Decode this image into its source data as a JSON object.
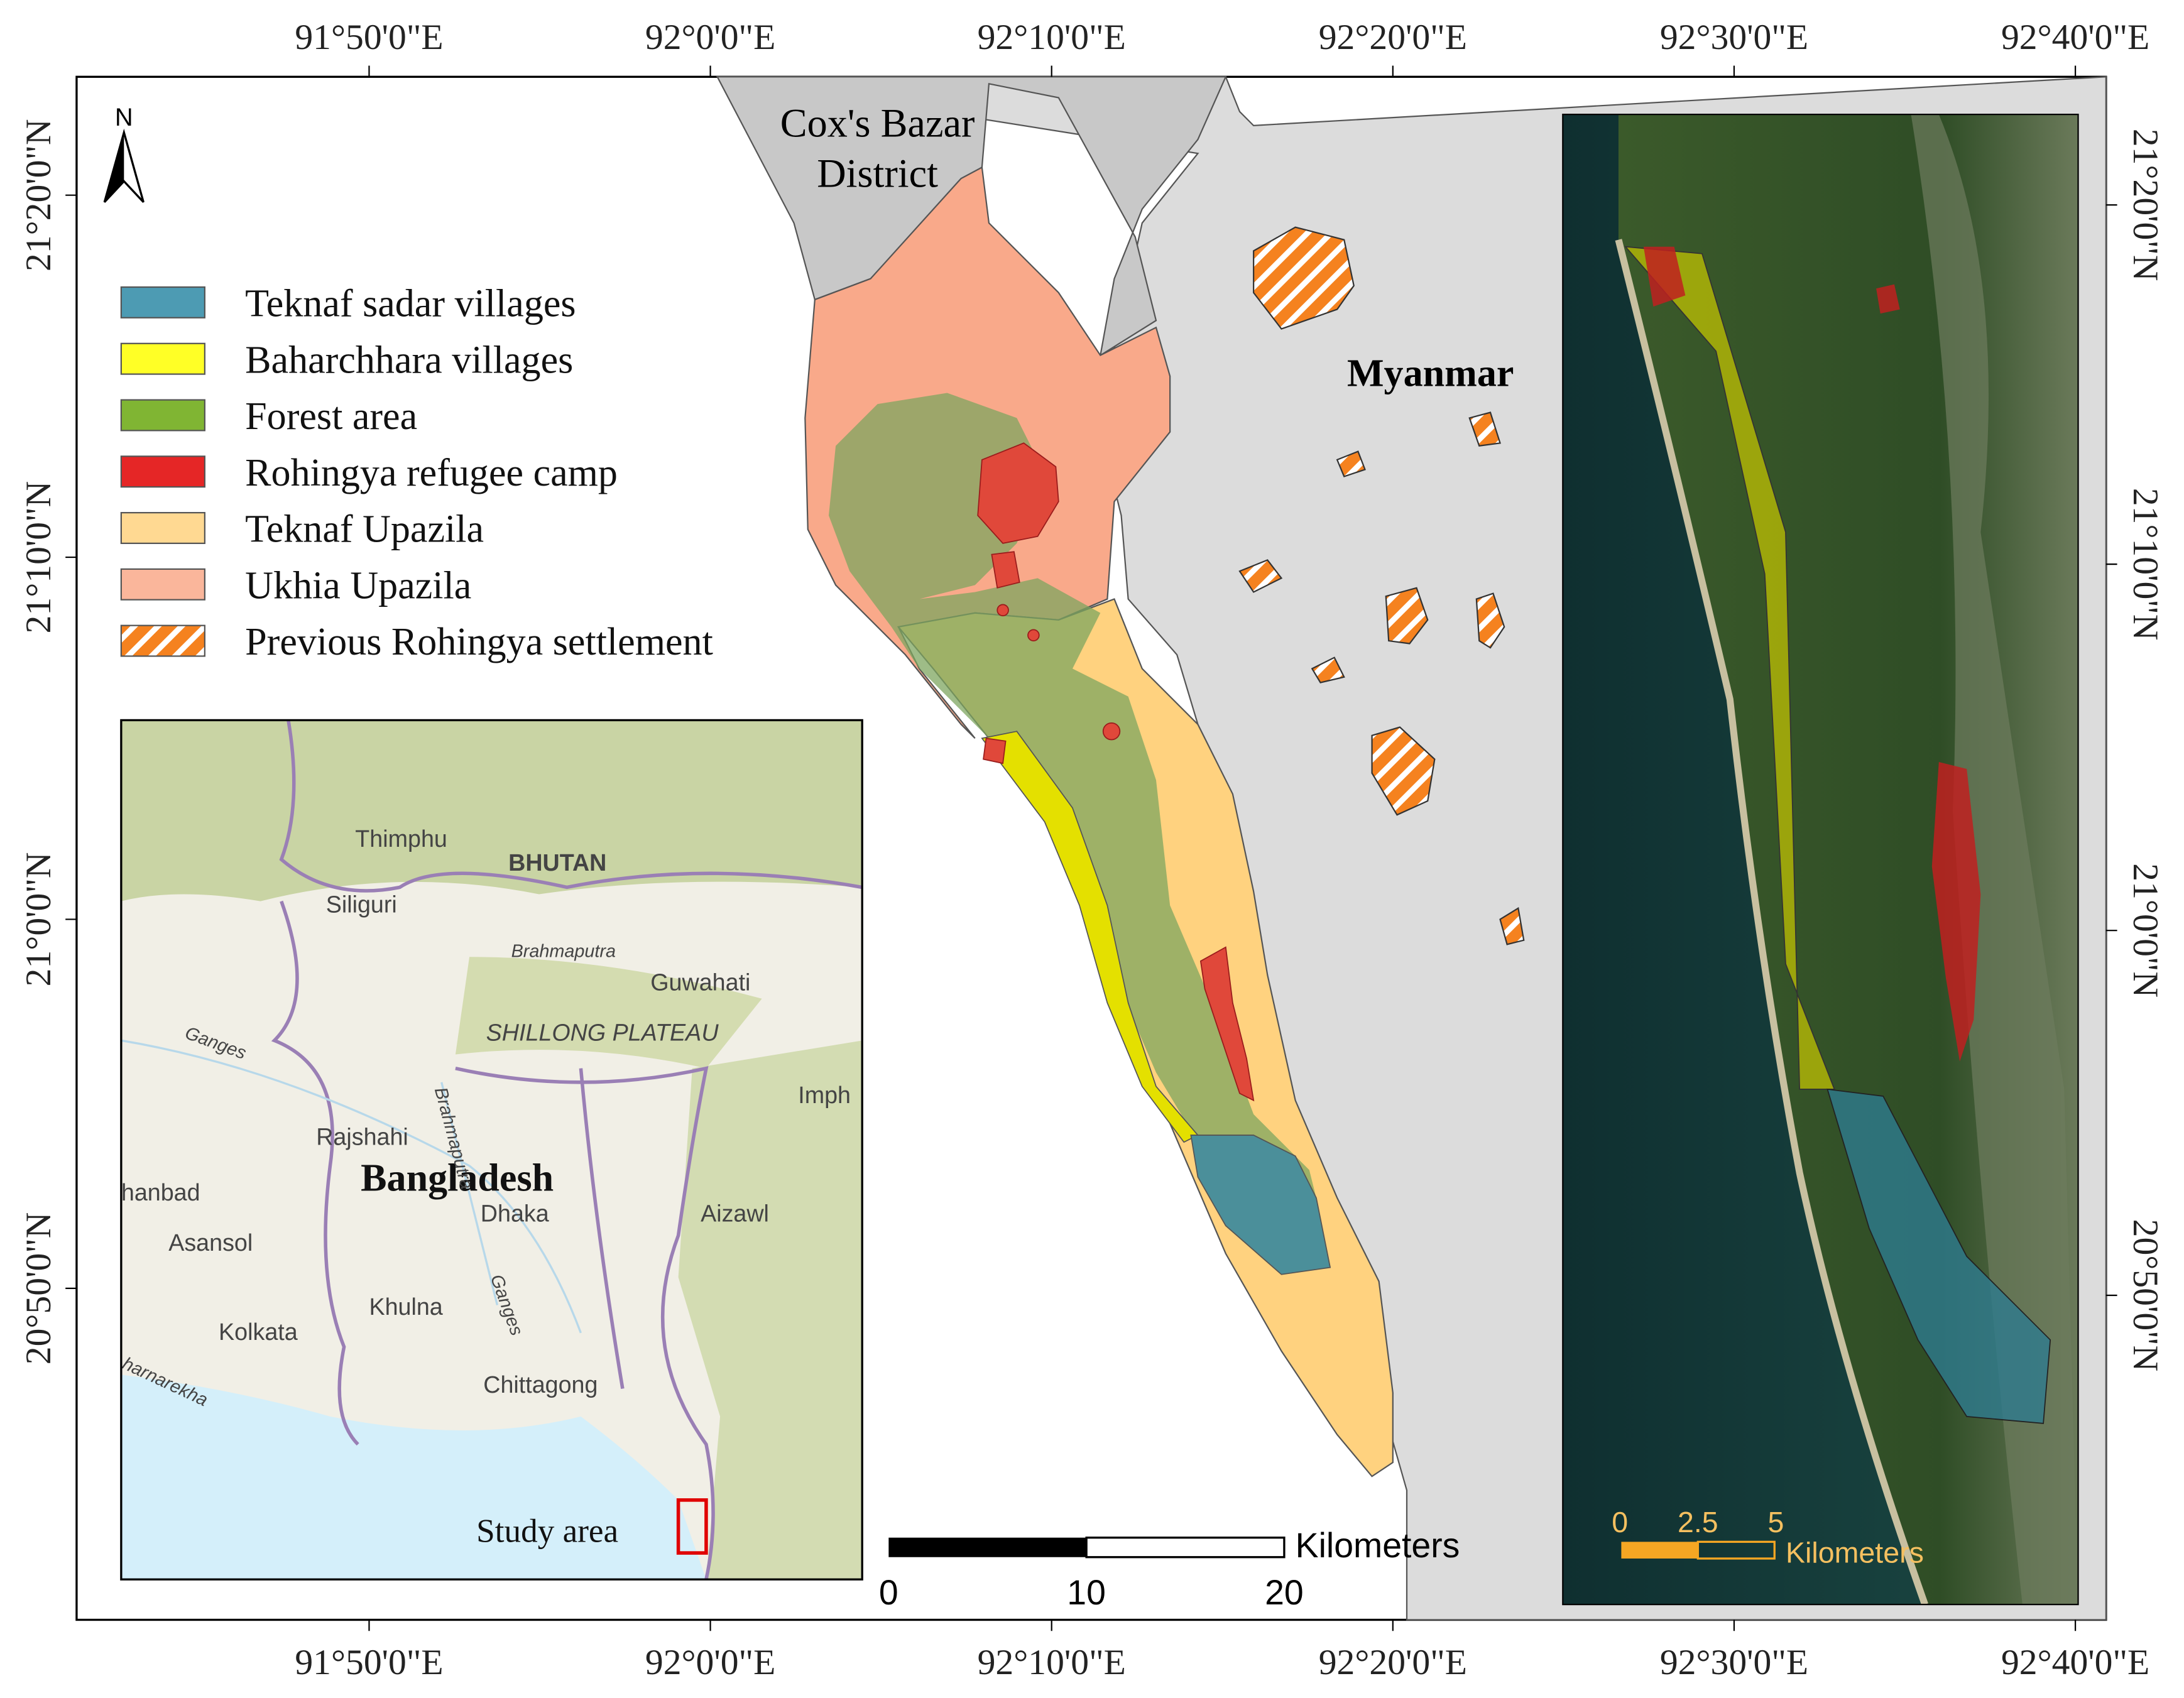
{
  "grid": {
    "lon_top": [
      "91°50'0\"E",
      "92°0'0\"E",
      "92°10'0\"E",
      "92°20'0\"E",
      "92°30'0\"E",
      "92°40'0\"E"
    ],
    "lon_bottom": [
      "91°50'0\"E",
      "92°0'0\"E",
      "92°10'0\"E",
      "92°20'0\"E",
      "92°30'0\"E",
      "92°40'0\"E"
    ],
    "lat_left": [
      "21°20'0\"N",
      "21°10'0\"N",
      "21°0'0\"N",
      "20°50'0\"N"
    ],
    "lat_right": [
      "21°20'0\"N",
      "21°10'0\"N",
      "21°0'0\"N",
      "20°50'0\"N"
    ]
  },
  "north": "N",
  "legend": [
    {
      "label": "Teknaf  sadar villages",
      "color": "#2e8aa6"
    },
    {
      "label": "Baharchhara villages",
      "color": "#ffff00"
    },
    {
      "label": "Forest area",
      "color": "#6aa80f"
    },
    {
      "label": "Rohingya refugee camp",
      "color": "#e00000"
    },
    {
      "label": "Teknaf Upazila",
      "color": "#ffd27f"
    },
    {
      "label": "Ukhia Upazila",
      "color": "#f9a98a"
    },
    {
      "label": "Previous Rohingya settlement",
      "color": "#f5821f"
    }
  ],
  "places": {
    "district": [
      "Cox's Bazar",
      "District"
    ],
    "country": "Myanmar"
  },
  "inset": {
    "labels": [
      "Thimphu",
      "BHUTAN",
      "Siliguri",
      "Brahmaputra",
      "Guwahati",
      "SHILLONG PLATEAU",
      "Ganges",
      "Imph",
      "Rajshahi",
      "Bangladesh",
      "hanbad",
      "Asansol",
      "Dhaka",
      "Aizawl",
      "Khulna",
      "Kolkata",
      "Chittagong",
      "Study area",
      "Brahmaputra",
      "Ganges",
      "harnarekha"
    ]
  },
  "scale": {
    "ticks": [
      "0",
      "10",
      "20"
    ],
    "unit": "Kilometers"
  },
  "sat_scale": {
    "ticks": [
      "0",
      "2.5",
      "5"
    ],
    "unit": "Kilometers"
  }
}
